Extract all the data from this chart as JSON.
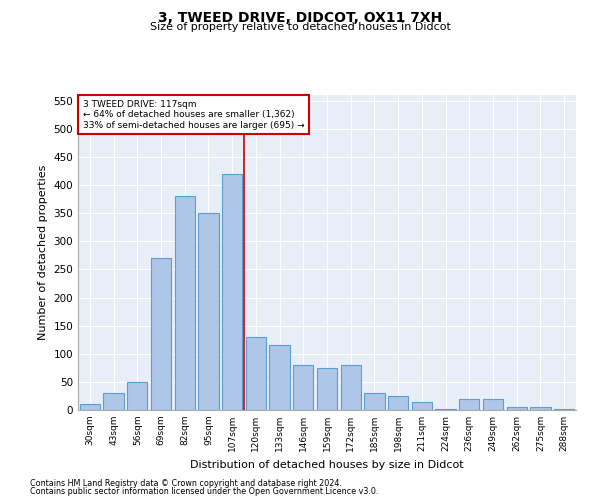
{
  "title1": "3, TWEED DRIVE, DIDCOT, OX11 7XH",
  "title2": "Size of property relative to detached houses in Didcot",
  "xlabel": "Distribution of detached houses by size in Didcot",
  "ylabel": "Number of detached properties",
  "categories": [
    "30sqm",
    "43sqm",
    "56sqm",
    "69sqm",
    "82sqm",
    "95sqm",
    "107sqm",
    "120sqm",
    "133sqm",
    "146sqm",
    "159sqm",
    "172sqm",
    "185sqm",
    "198sqm",
    "211sqm",
    "224sqm",
    "236sqm",
    "249sqm",
    "262sqm",
    "275sqm",
    "288sqm"
  ],
  "values": [
    10,
    30,
    50,
    270,
    380,
    350,
    420,
    130,
    115,
    80,
    75,
    80,
    30,
    25,
    15,
    2,
    20,
    20,
    5,
    5,
    2
  ],
  "bar_color": "#aec6e8",
  "bar_edge_color": "#5a9fd4",
  "marker_line_color": "#cc0000",
  "annotation_line1": "3 TWEED DRIVE: 117sqm",
  "annotation_line2": "← 64% of detached houses are smaller (1,362)",
  "annotation_line3": "33% of semi-detached houses are larger (695) →",
  "annotation_box_color": "#ffffff",
  "annotation_box_edge": "#cc0000",
  "ylim": [
    0,
    560
  ],
  "yticks": [
    0,
    50,
    100,
    150,
    200,
    250,
    300,
    350,
    400,
    450,
    500,
    550
  ],
  "bg_color": "#e8eef8",
  "footnote1": "Contains HM Land Registry data © Crown copyright and database right 2024.",
  "footnote2": "Contains public sector information licensed under the Open Government Licence v3.0."
}
